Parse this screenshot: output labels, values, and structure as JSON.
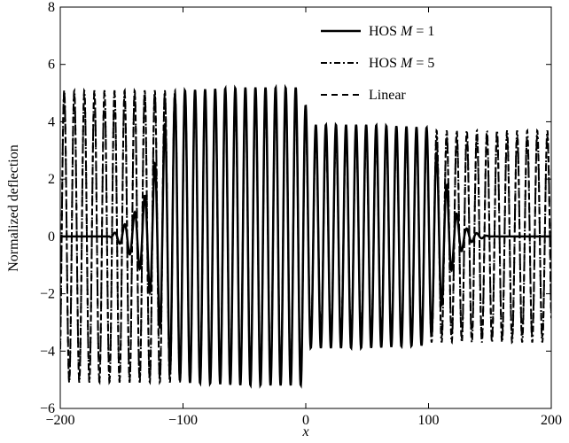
{
  "chart_data": {
    "type": "line",
    "xlabel": "x",
    "ylabel": "Normalized deflection",
    "xlim": [
      -200,
      200
    ],
    "ylim": [
      -6,
      8
    ],
    "xticks": [
      -200,
      -100,
      0,
      100,
      200
    ],
    "yticks": [
      -6,
      -4,
      -2,
      0,
      2,
      4,
      6,
      8
    ],
    "xtick_labels": [
      "−200",
      "−100",
      "0",
      "100",
      "200"
    ],
    "ytick_labels": [
      "−6",
      "−4",
      "−2",
      "0",
      "2",
      "4",
      "6",
      "8"
    ],
    "grid": false,
    "legend_position": "top-right",
    "series": [
      {
        "name": "HOS M = 1",
        "name_parts": {
          "prefix": "HOS ",
          "italic": "M",
          "suffix": " = 1"
        },
        "style": "solid",
        "description": "Wave packet confined to about x = -150 to 120; amplitude ~5.1 for x<0, ~3.9 for x>0; zero elsewhere",
        "envelope": [
          [
            -200,
            0
          ],
          [
            -160,
            0
          ],
          [
            -150,
            0.3
          ],
          [
            -140,
            0.8
          ],
          [
            -130,
            1.5
          ],
          [
            -120,
            3.0
          ],
          [
            -110,
            4.8
          ],
          [
            -100,
            5.1
          ],
          [
            -50,
            5.2
          ],
          [
            -2,
            5.2
          ],
          [
            2,
            3.9
          ],
          [
            50,
            3.9
          ],
          [
            100,
            3.8
          ],
          [
            110,
            2.5
          ],
          [
            120,
            1.0
          ],
          [
            130,
            0.3
          ],
          [
            140,
            0.1
          ],
          [
            150,
            0
          ],
          [
            200,
            0
          ]
        ],
        "wavelength": 8.2
      },
      {
        "name": "HOS M = 5",
        "name_parts": {
          "prefix": "HOS ",
          "italic": "M",
          "suffix": " = 5"
        },
        "style": "dashdot",
        "description": "Uniform wave across whole domain, amplitude ~5.1 for x<0 and ~3.7 for x>0",
        "envelope": [
          [
            -200,
            5.1
          ],
          [
            -2,
            5.1
          ],
          [
            2,
            3.7
          ],
          [
            200,
            3.7
          ]
        ],
        "wavelength": 8.2
      },
      {
        "name": "Linear",
        "name_parts": {
          "prefix": "Linear",
          "italic": "",
          "suffix": ""
        },
        "style": "dashed",
        "description": "Uniform wave across whole domain, amplitude ~5.0 for x<0 and ~3.5 for x>0",
        "envelope": [
          [
            -200,
            5.0
          ],
          [
            -2,
            5.0
          ],
          [
            2,
            3.5
          ],
          [
            200,
            3.5
          ]
        ],
        "wavelength": 8.2
      }
    ]
  }
}
